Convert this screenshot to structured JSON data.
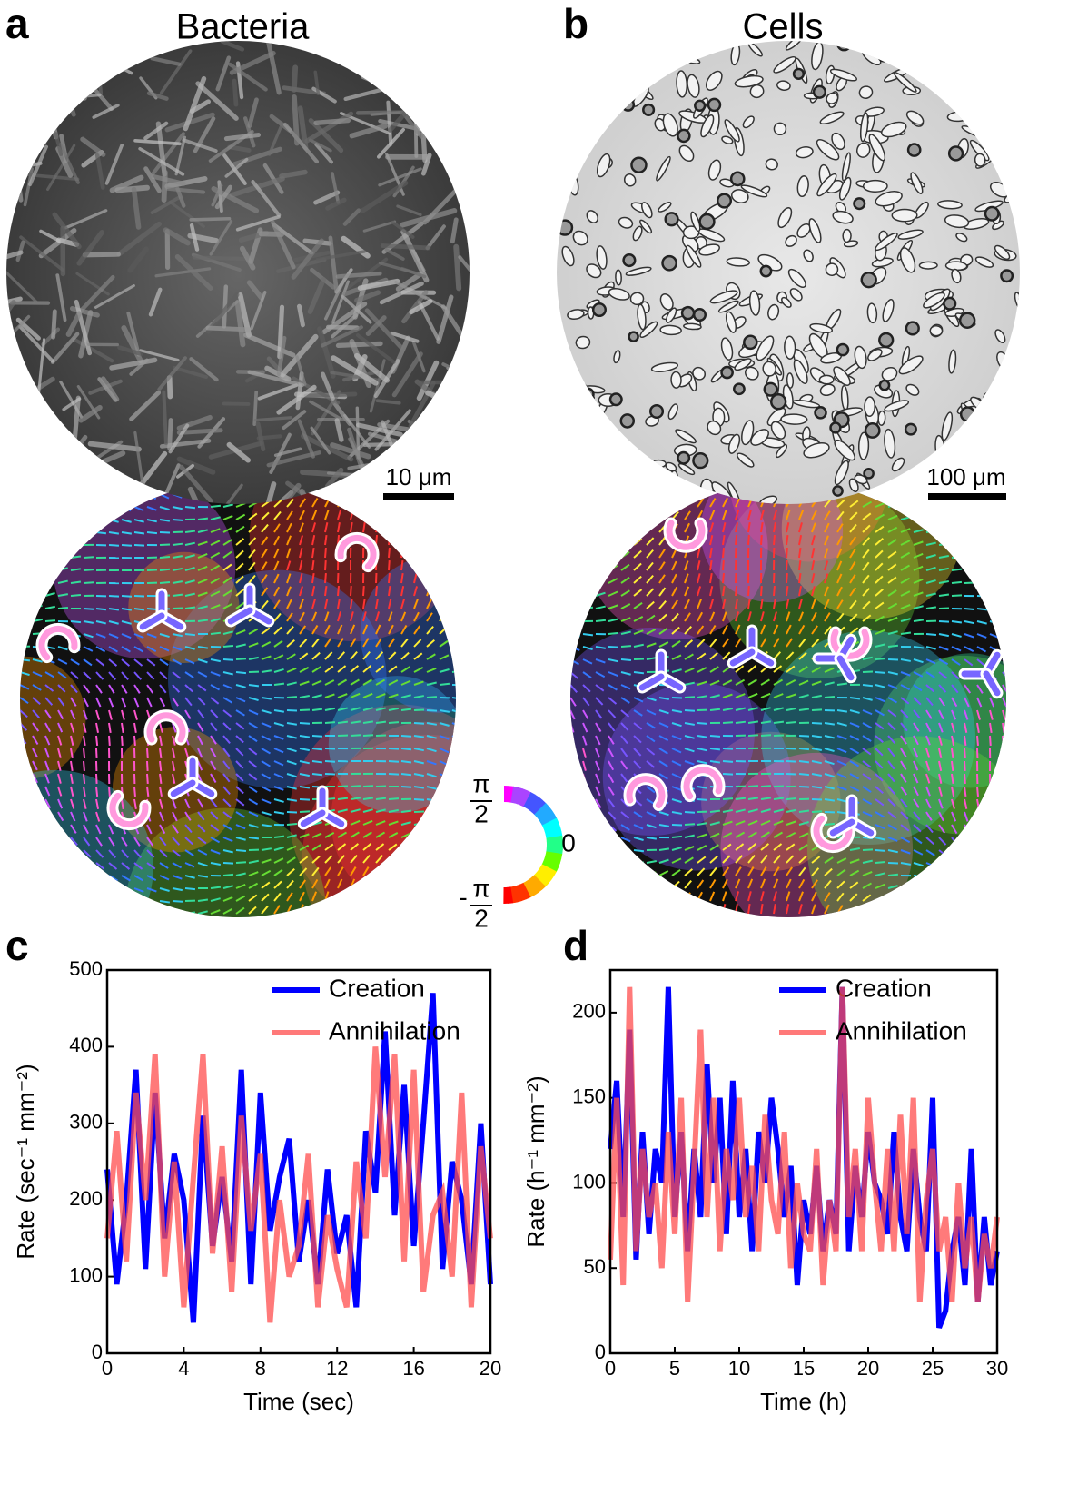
{
  "panels": [
    {
      "label": "a",
      "title": "Bacteria",
      "scale_bar": "10 μm"
    },
    {
      "label": "b",
      "title": "Cells",
      "scale_bar": "100 μm"
    }
  ],
  "colorbar": {
    "top": {
      "num": "π",
      "den": "2"
    },
    "mid": "0",
    "bottom": {
      "sign": "-",
      "num": "π",
      "den": "2"
    }
  },
  "chart_data": [
    {
      "type": "line",
      "panel_label": "c",
      "xlabel": "Time (sec)",
      "ylabel": "Rate (sec⁻¹ mm⁻²)",
      "xlim": [
        0,
        20
      ],
      "xticks": [
        0,
        4,
        8,
        12,
        16,
        20
      ],
      "ylim": [
        0,
        500
      ],
      "yticks": [
        0,
        100,
        200,
        300,
        400,
        500
      ],
      "x": [
        0,
        0.5,
        1,
        1.5,
        2,
        2.5,
        3,
        3.5,
        4,
        4.5,
        5,
        5.5,
        6,
        6.5,
        7,
        7.5,
        8,
        8.5,
        9,
        9.5,
        10,
        10.5,
        11,
        11.5,
        12,
        12.5,
        13,
        13.5,
        14,
        14.5,
        15,
        15.5,
        16,
        16.5,
        17,
        17.5,
        18,
        18.5,
        19,
        19.5,
        20
      ],
      "series": [
        {
          "name": "Creation",
          "color": "#0000ff",
          "values": [
            240,
            90,
            200,
            370,
            110,
            340,
            150,
            260,
            200,
            40,
            310,
            140,
            230,
            120,
            370,
            90,
            340,
            160,
            230,
            280,
            120,
            200,
            90,
            240,
            130,
            180,
            60,
            290,
            210,
            420,
            180,
            350,
            140,
            300,
            470,
            110,
            250,
            200,
            90,
            300,
            90
          ]
        },
        {
          "name": "Annihilation",
          "color": "#ff4d4d",
          "values": [
            150,
            290,
            120,
            340,
            200,
            390,
            100,
            250,
            60,
            230,
            390,
            130,
            270,
            80,
            310,
            160,
            260,
            40,
            200,
            100,
            140,
            260,
            60,
            180,
            110,
            60,
            250,
            150,
            400,
            230,
            390,
            120,
            370,
            80,
            180,
            210,
            100,
            340,
            60,
            270,
            150
          ]
        }
      ]
    },
    {
      "type": "line",
      "panel_label": "d",
      "xlabel": "Time (h)",
      "ylabel": "Rate (h⁻¹ mm⁻²)",
      "xlim": [
        0,
        30
      ],
      "xticks": [
        0,
        5,
        10,
        15,
        20,
        25,
        30
      ],
      "ylim": [
        0,
        225
      ],
      "yticks": [
        0,
        50,
        100,
        150,
        200
      ],
      "x": [
        0,
        0.5,
        1,
        1.5,
        2,
        2.5,
        3,
        3.5,
        4,
        4.5,
        5,
        5.5,
        6,
        6.5,
        7,
        7.5,
        8,
        8.5,
        9,
        9.5,
        10,
        10.5,
        11,
        11.5,
        12,
        12.5,
        13,
        13.5,
        14,
        14.5,
        15,
        15.5,
        16,
        16.5,
        17,
        17.5,
        18,
        18.5,
        19,
        19.5,
        20,
        20.5,
        21,
        21.5,
        22,
        22.5,
        23,
        23.5,
        24,
        24.5,
        25,
        25.5,
        26,
        26.5,
        27,
        27.5,
        28,
        28.5,
        29,
        29.5,
        30
      ],
      "series": [
        {
          "name": "Creation",
          "color": "#0000ff",
          "values": [
            120,
            160,
            80,
            190,
            55,
            130,
            70,
            120,
            100,
            215,
            80,
            130,
            60,
            120,
            80,
            170,
            100,
            150,
            70,
            160,
            80,
            120,
            60,
            130,
            100,
            150,
            120,
            80,
            110,
            40,
            90,
            70,
            110,
            60,
            90,
            70,
            215,
            60,
            110,
            80,
            130,
            100,
            90,
            70,
            130,
            80,
            60,
            120,
            80,
            60,
            150,
            15,
            25,
            60,
            80,
            40,
            120,
            30,
            80,
            40,
            60
          ]
        },
        {
          "name": "Annihilation",
          "color": "#ff4d4d",
          "values": [
            55,
            150,
            40,
            215,
            60,
            120,
            80,
            100,
            50,
            130,
            70,
            150,
            30,
            110,
            190,
            80,
            150,
            60,
            120,
            90,
            150,
            80,
            110,
            60,
            140,
            90,
            70,
            130,
            50,
            100,
            70,
            60,
            120,
            40,
            90,
            60,
            215,
            80,
            120,
            60,
            150,
            100,
            60,
            120,
            60,
            140,
            70,
            150,
            30,
            90,
            120,
            60,
            80,
            30,
            100,
            50,
            80,
            30,
            70,
            50,
            80
          ]
        }
      ]
    }
  ]
}
